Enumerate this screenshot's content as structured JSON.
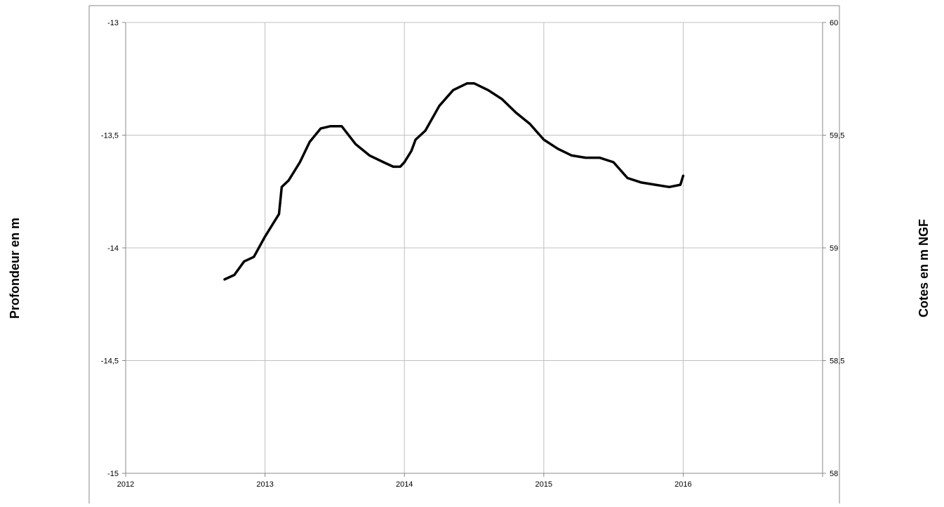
{
  "chart_data": {
    "type": "line",
    "title": "",
    "ylabel_left": "Profondeur en m",
    "ylabel_right": "Cotes en m NGF",
    "xlim": [
      2012,
      2017
    ],
    "ylim_left": [
      -15,
      -13
    ],
    "ylim_right": [
      58,
      60
    ],
    "x_ticks": [
      2012,
      2013,
      2014,
      2015,
      2016
    ],
    "x_tick_labels": [
      "2012",
      "2013",
      "2014",
      "2015",
      "2016"
    ],
    "y_left_ticks": [
      -13,
      -13.5,
      -14,
      -14.5,
      -15
    ],
    "y_left_tick_labels": [
      "-13",
      "-13,5",
      "-14",
      "-14,5",
      "-15"
    ],
    "y_right_ticks": [
      60,
      59.5,
      59,
      58.5,
      58
    ],
    "y_right_tick_labels": [
      "60",
      "59,5",
      "59",
      "58,5",
      "58"
    ],
    "grid": true,
    "legend": "none",
    "series": [
      {
        "color": "#000000",
        "x": [
          2012.71,
          2012.78,
          2012.85,
          2012.92,
          2013.0,
          2013.05,
          2013.1,
          2013.12,
          2013.17,
          2013.25,
          2013.32,
          2013.4,
          2013.47,
          2013.55,
          2013.65,
          2013.75,
          2013.85,
          2013.92,
          2013.97,
          2014.0,
          2014.05,
          2014.08,
          2014.15,
          2014.25,
          2014.35,
          2014.45,
          2014.5,
          2014.6,
          2014.7,
          2014.8,
          2014.9,
          2015.0,
          2015.1,
          2015.2,
          2015.3,
          2015.4,
          2015.5,
          2015.6,
          2015.7,
          2015.8,
          2015.9,
          2015.98,
          2016.0
        ],
        "y": [
          -14.14,
          -14.12,
          -14.06,
          -14.04,
          -13.95,
          -13.9,
          -13.85,
          -13.73,
          -13.7,
          -13.62,
          -13.53,
          -13.47,
          -13.46,
          -13.46,
          -13.54,
          -13.59,
          -13.62,
          -13.64,
          -13.64,
          -13.62,
          -13.57,
          -13.52,
          -13.48,
          -13.37,
          -13.3,
          -13.27,
          -13.27,
          -13.3,
          -13.34,
          -13.4,
          -13.45,
          -13.52,
          -13.56,
          -13.59,
          -13.6,
          -13.6,
          -13.62,
          -13.69,
          -13.71,
          -13.72,
          -13.73,
          -13.72,
          -13.68
        ]
      }
    ]
  }
}
